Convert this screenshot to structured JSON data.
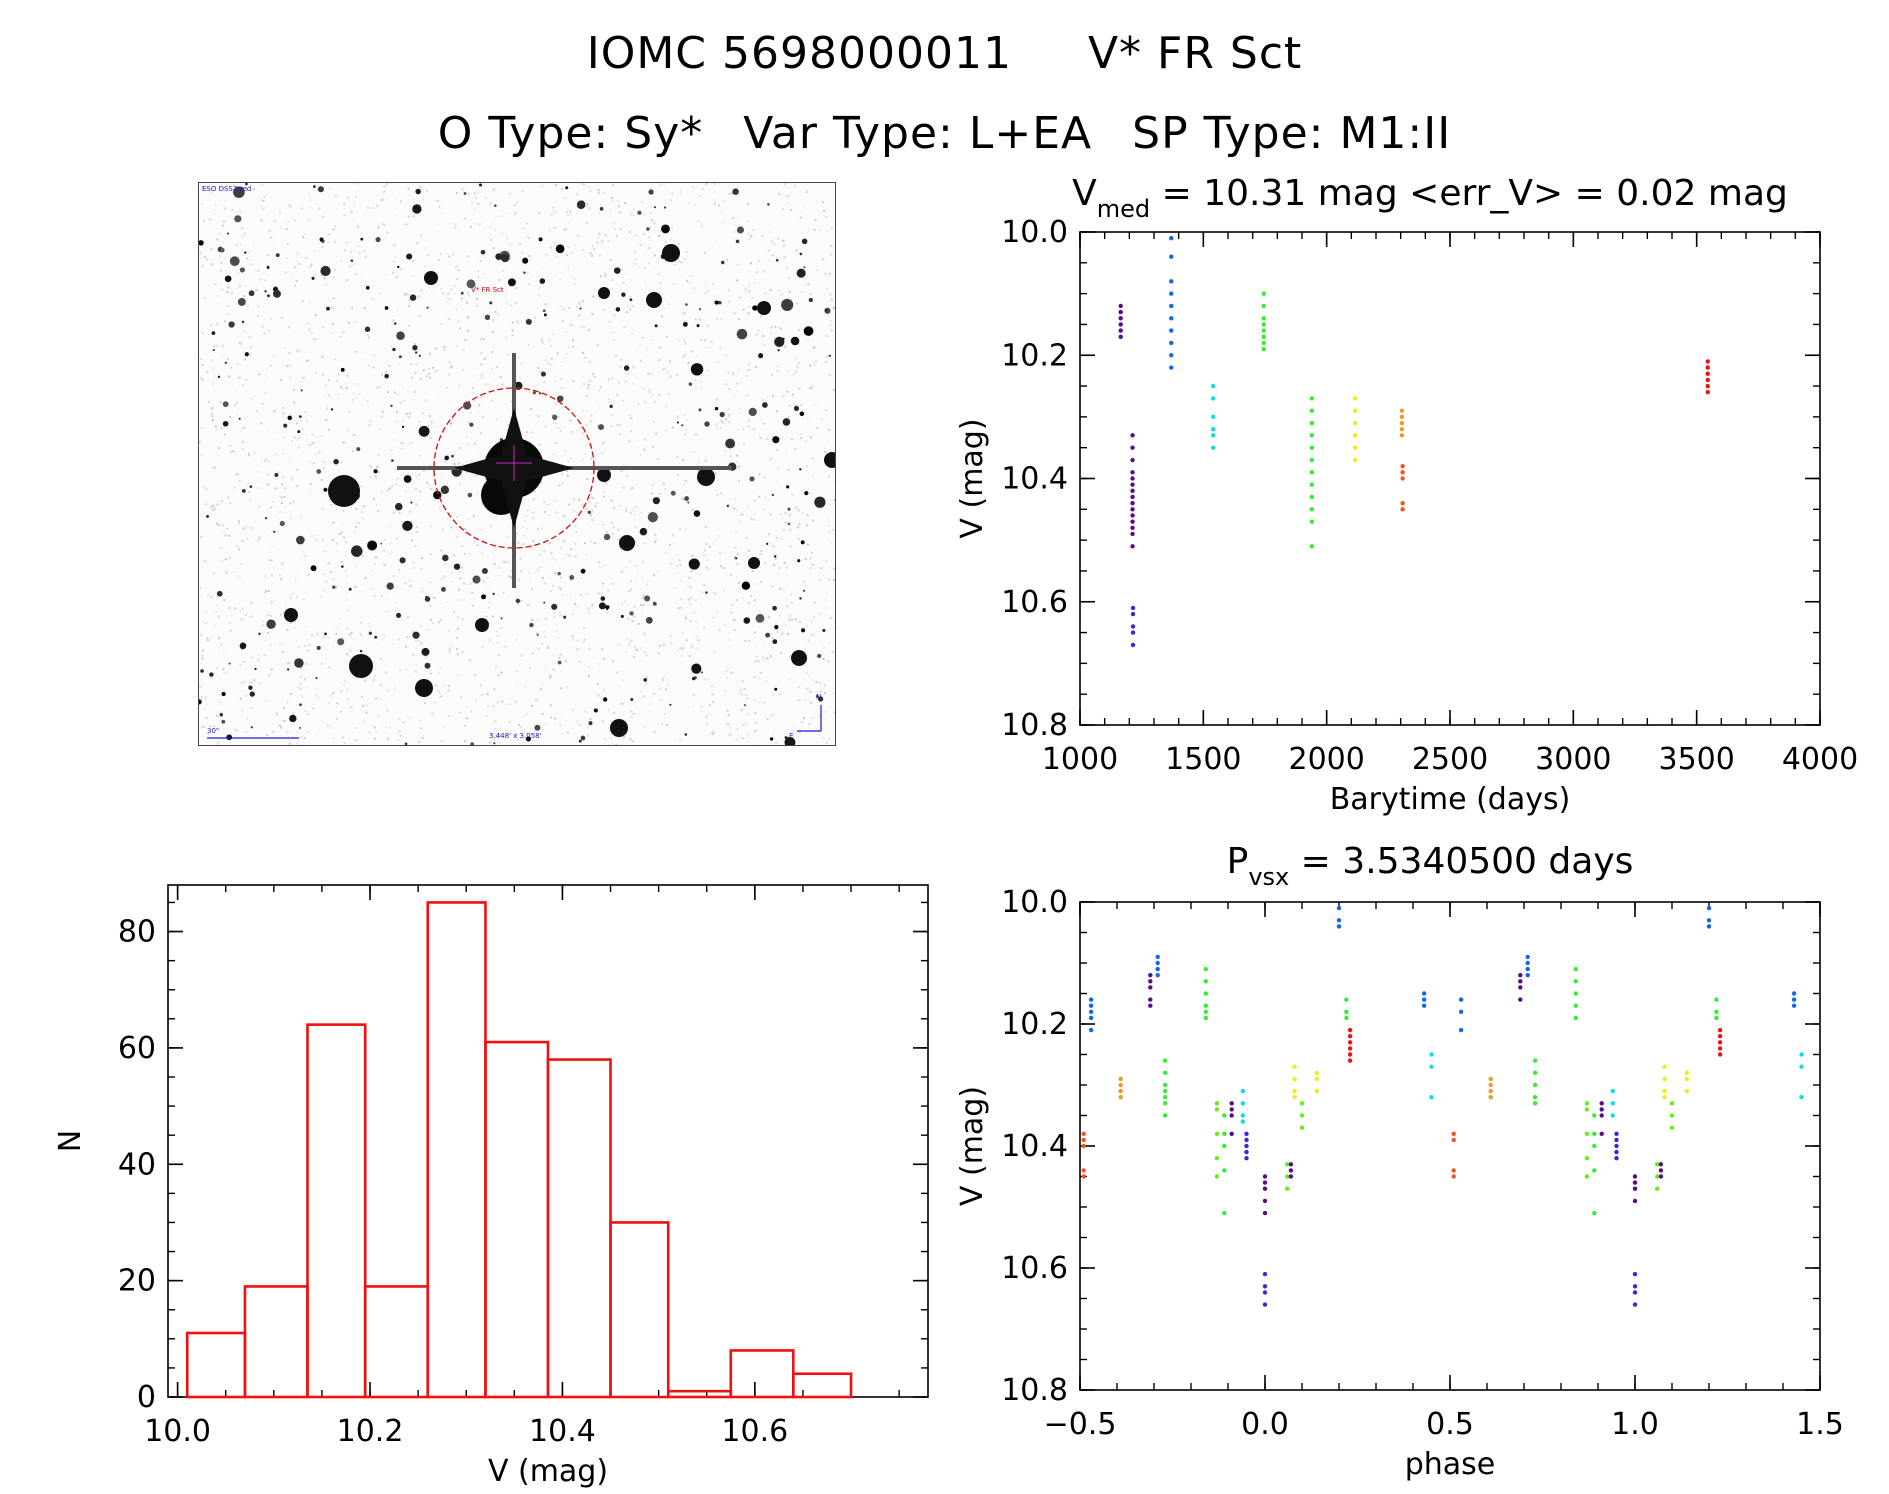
{
  "header": {
    "id": "IOMC 5698000011",
    "name": "V* FR Sct",
    "otype": "O Type: Sy*",
    "vartype": "Var Type: L+EA",
    "sptype": "SP Type: M1:II"
  },
  "finder": {
    "survey": "ESO DSS2-red",
    "object": "V* FR Sct",
    "scale": "30\"",
    "fov": "3.448' x 3.058'",
    "north": "N",
    "east": "E"
  },
  "colors": {
    "hist": "#ee1111",
    "series": [
      "#5a0a8a",
      "#4422dd",
      "#1166ee",
      "#11dddd",
      "#33ee33",
      "#66ee11",
      "#eeee11",
      "#ee9922",
      "#ee5522",
      "#ee1111"
    ]
  },
  "chart_data": [
    {
      "type": "scatter",
      "title_main": "V",
      "title_sub": "med",
      "title_rest": " = 10.31 mag <err_V> = 0.02 mag",
      "xlabel": "Barytime (days)",
      "ylabel": "V (mag)",
      "xlim": [
        1000,
        4000
      ],
      "ylim": [
        10.8,
        10.0
      ],
      "xticks": [
        "1000",
        "1500",
        "2000",
        "2500",
        "3000",
        "3500",
        "4000"
      ],
      "yticks": [
        "10.0",
        "10.2",
        "10.4",
        "10.6",
        "10.8"
      ],
      "series": [
        {
          "color": 0,
          "x": 1165,
          "y": [
            10.12,
            10.13,
            10.14,
            10.15,
            10.16,
            10.17
          ]
        },
        {
          "color": 0,
          "x": 1213,
          "y": [
            10.33,
            10.35,
            10.37,
            10.39,
            10.4,
            10.41,
            10.42,
            10.43,
            10.44,
            10.45,
            10.46,
            10.47,
            10.48,
            10.49,
            10.51
          ]
        },
        {
          "color": 1,
          "x": 1215,
          "y": [
            10.61,
            10.62,
            10.64,
            10.65,
            10.67
          ]
        },
        {
          "color": 2,
          "x": 1370,
          "y": [
            10.01,
            10.04,
            10.08,
            10.1,
            10.12,
            10.14,
            10.16,
            10.18,
            10.2,
            10.22
          ]
        },
        {
          "color": 3,
          "x": 1540,
          "y": [
            10.25,
            10.27,
            10.3,
            10.32,
            10.33,
            10.35
          ]
        },
        {
          "color": 4,
          "x": 1745,
          "y": [
            10.1,
            10.12,
            10.14,
            10.15,
            10.16,
            10.17,
            10.18,
            10.19
          ]
        },
        {
          "color": 4,
          "x": 1940,
          "y": [
            10.27,
            10.29,
            10.31,
            10.33,
            10.35,
            10.37,
            10.39,
            10.41,
            10.43,
            10.45,
            10.47,
            10.51
          ]
        },
        {
          "color": 6,
          "x": 2115,
          "y": [
            10.27,
            10.29,
            10.31,
            10.33,
            10.35,
            10.37
          ]
        },
        {
          "color": 7,
          "x": 2305,
          "y": [
            10.29,
            10.3,
            10.31,
            10.32,
            10.33
          ]
        },
        {
          "color": 8,
          "x": 2308,
          "y": [
            10.38,
            10.39,
            10.4,
            10.44,
            10.45
          ]
        },
        {
          "color": 9,
          "x": 3545,
          "y": [
            10.21,
            10.22,
            10.23,
            10.24,
            10.25,
            10.26
          ]
        }
      ]
    },
    {
      "type": "bar",
      "title": "",
      "xlabel": "V (mag)",
      "ylabel": "N",
      "xlim": [
        9.99,
        10.78
      ],
      "ylim": [
        0,
        88
      ],
      "xticks": [
        "10.0",
        "10.2",
        "10.4",
        "10.6"
      ],
      "yticks": [
        "0",
        "20",
        "40",
        "60",
        "80"
      ],
      "bin_edges": [
        10.01,
        10.07,
        10.135,
        10.195,
        10.26,
        10.32,
        10.385,
        10.45,
        10.51,
        10.575,
        10.64,
        10.7
      ],
      "values": [
        11,
        19,
        64,
        19,
        85,
        61,
        58,
        30,
        1,
        8,
        4
      ]
    },
    {
      "type": "scatter",
      "title_main": "P",
      "title_sub": "vsx",
      "title_rest": " = 3.5340500 days",
      "xlabel": "phase",
      "ylabel": "V (mag)",
      "xlim": [
        -0.5,
        1.5
      ],
      "ylim": [
        10.8,
        10.0
      ],
      "xticks": [
        "−0.5",
        "0.0",
        "0.5",
        "1.0",
        "1.5"
      ],
      "yticks": [
        "10.0",
        "10.2",
        "10.4",
        "10.6",
        "10.8"
      ],
      "series": [
        {
          "color": 2,
          "x": -0.47,
          "y": [
            10.16,
            10.17,
            10.18,
            10.19,
            10.21
          ]
        },
        {
          "color": 8,
          "x": -0.49,
          "y": [
            10.38,
            10.39,
            10.4,
            10.44,
            10.45
          ]
        },
        {
          "color": 7,
          "x": -0.39,
          "y": [
            10.29,
            10.3,
            10.31,
            10.32
          ]
        },
        {
          "color": 0,
          "x": -0.31,
          "y": [
            10.12,
            10.13,
            10.14,
            10.16,
            10.17
          ]
        },
        {
          "color": 2,
          "x": -0.29,
          "y": [
            10.09,
            10.1,
            10.11,
            10.12
          ]
        },
        {
          "color": 4,
          "x": -0.27,
          "y": [
            10.26,
            10.28,
            10.3,
            10.31,
            10.32,
            10.33,
            10.35
          ]
        },
        {
          "color": 4,
          "x": -0.16,
          "y": [
            10.11,
            10.13,
            10.15,
            10.17,
            10.18,
            10.19
          ]
        },
        {
          "color": 5,
          "x": -0.13,
          "y": [
            10.33,
            10.34,
            10.38,
            10.42,
            10.45
          ]
        },
        {
          "color": 4,
          "x": -0.11,
          "y": [
            10.35,
            10.38,
            10.4,
            10.44,
            10.51
          ]
        },
        {
          "color": 0,
          "x": -0.09,
          "y": [
            10.33,
            10.34,
            10.35,
            10.38
          ]
        },
        {
          "color": 3,
          "x": -0.06,
          "y": [
            10.31,
            10.33,
            10.35,
            10.36
          ]
        },
        {
          "color": 1,
          "x": -0.05,
          "y": [
            10.38,
            10.39,
            10.4,
            10.41,
            10.42
          ]
        },
        {
          "color": 0,
          "x": 0.0,
          "y": [
            10.45,
            10.46,
            10.47,
            10.49,
            10.51
          ]
        },
        {
          "color": 1,
          "x": 0.0,
          "y": [
            10.61,
            10.63,
            10.64,
            10.66
          ]
        },
        {
          "color": 5,
          "x": 0.06,
          "y": [
            10.43,
            10.45,
            10.47
          ]
        },
        {
          "color": 0,
          "x": 0.07,
          "y": [
            10.43,
            10.44,
            10.45
          ]
        },
        {
          "color": 6,
          "x": 0.08,
          "y": [
            10.27,
            10.29,
            10.31,
            10.32
          ]
        },
        {
          "color": 5,
          "x": 0.1,
          "y": [
            10.33,
            10.35,
            10.37
          ]
        },
        {
          "color": 6,
          "x": 0.14,
          "y": [
            10.28,
            10.29,
            10.31
          ]
        },
        {
          "color": 2,
          "x": 0.2,
          "y": [
            10.01,
            10.03,
            10.04
          ]
        },
        {
          "color": 4,
          "x": 0.22,
          "y": [
            10.16,
            10.18,
            10.19
          ]
        },
        {
          "color": 9,
          "x": 0.23,
          "y": [
            10.21,
            10.22,
            10.23,
            10.24,
            10.25,
            10.26
          ]
        },
        {
          "color": 2,
          "x": 0.43,
          "y": [
            10.15,
            10.16,
            10.17
          ]
        },
        {
          "color": 3,
          "x": 0.45,
          "y": [
            10.25,
            10.27,
            10.32
          ]
        },
        {
          "color": 8,
          "x": 0.51,
          "y": [
            10.38,
            10.39,
            10.44,
            10.45
          ]
        },
        {
          "color": 2,
          "x": 0.53,
          "y": [
            10.16,
            10.18,
            10.21
          ]
        },
        {
          "color": 7,
          "x": 0.61,
          "y": [
            10.29,
            10.3,
            10.31,
            10.32
          ]
        },
        {
          "color": 0,
          "x": 0.69,
          "y": [
            10.12,
            10.13,
            10.14,
            10.16
          ]
        },
        {
          "color": 2,
          "x": 0.71,
          "y": [
            10.09,
            10.1,
            10.11,
            10.12
          ]
        },
        {
          "color": 4,
          "x": 0.73,
          "y": [
            10.26,
            10.28,
            10.3,
            10.32,
            10.33
          ]
        },
        {
          "color": 4,
          "x": 0.84,
          "y": [
            10.11,
            10.13,
            10.15,
            10.17,
            10.19
          ]
        },
        {
          "color": 5,
          "x": 0.87,
          "y": [
            10.33,
            10.34,
            10.38,
            10.42,
            10.45
          ]
        },
        {
          "color": 4,
          "x": 0.89,
          "y": [
            10.35,
            10.38,
            10.4,
            10.44,
            10.51
          ]
        },
        {
          "color": 0,
          "x": 0.91,
          "y": [
            10.33,
            10.34,
            10.35,
            10.38
          ]
        },
        {
          "color": 3,
          "x": 0.94,
          "y": [
            10.31,
            10.33,
            10.35
          ]
        },
        {
          "color": 1,
          "x": 0.95,
          "y": [
            10.38,
            10.39,
            10.4,
            10.41,
            10.42
          ]
        },
        {
          "color": 0,
          "x": 1.0,
          "y": [
            10.45,
            10.46,
            10.47,
            10.49
          ]
        },
        {
          "color": 1,
          "x": 1.0,
          "y": [
            10.61,
            10.63,
            10.64,
            10.66
          ]
        },
        {
          "color": 5,
          "x": 1.06,
          "y": [
            10.43,
            10.45,
            10.47
          ]
        },
        {
          "color": 0,
          "x": 1.07,
          "y": [
            10.43,
            10.44,
            10.45
          ]
        },
        {
          "color": 6,
          "x": 1.08,
          "y": [
            10.27,
            10.29,
            10.31,
            10.32
          ]
        },
        {
          "color": 5,
          "x": 1.1,
          "y": [
            10.33,
            10.35,
            10.37
          ]
        },
        {
          "color": 6,
          "x": 1.14,
          "y": [
            10.28,
            10.29,
            10.31
          ]
        },
        {
          "color": 2,
          "x": 1.2,
          "y": [
            10.01,
            10.03,
            10.04
          ]
        },
        {
          "color": 4,
          "x": 1.22,
          "y": [
            10.16,
            10.18,
            10.19
          ]
        },
        {
          "color": 9,
          "x": 1.23,
          "y": [
            10.21,
            10.22,
            10.23,
            10.24,
            10.25
          ]
        },
        {
          "color": 2,
          "x": 1.43,
          "y": [
            10.15,
            10.16,
            10.17
          ]
        },
        {
          "color": 3,
          "x": 1.45,
          "y": [
            10.25,
            10.27,
            10.32
          ]
        }
      ]
    }
  ]
}
